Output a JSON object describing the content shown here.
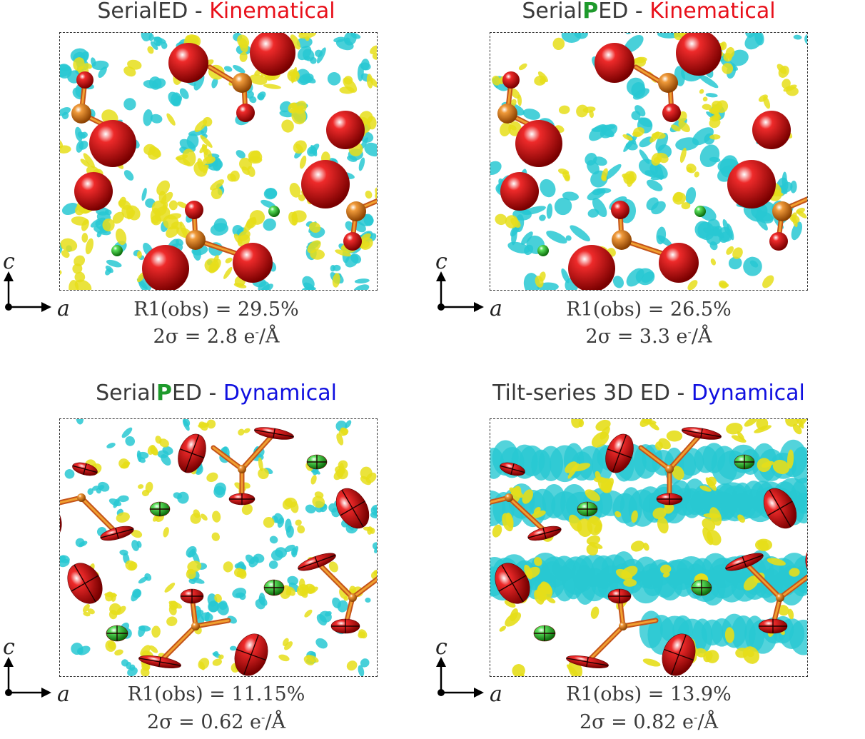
{
  "colors": {
    "kinematical": "#e8101a",
    "dynamical": "#1010e0",
    "precession_p": "#1e9a2c",
    "positive_density": "#e6de1a",
    "negative_density": "#28c8d2",
    "oxygen": "#dd1111",
    "phosphorus": "#e07d1c",
    "cation": "#38b838"
  },
  "axes": {
    "vertical": "c",
    "horizontal": "a"
  },
  "panels": [
    {
      "title_pre": "Serial",
      "title_p": "",
      "title_post": "ED - ",
      "method": "Kinematical",
      "r1": "R1(obs) = 29.5%",
      "sigma_a": "2σ = 2.8 e",
      "sigma_sup": "-",
      "sigma_b": "/Å",
      "style": "kin",
      "density_level": "strong"
    },
    {
      "title_pre": "Serial",
      "title_p": "P",
      "title_post": "ED - ",
      "method": "Kinematical",
      "r1": "R1(obs) = 26.5%",
      "sigma_a": "2σ = 3.3 e",
      "sigma_sup": "-",
      "sigma_b": "/Å",
      "style": "kin",
      "density_level": "strong"
    },
    {
      "title_pre": "Serial",
      "title_p": "P",
      "title_post": "ED - ",
      "method": "Dynamical",
      "r1": "R1(obs) = 11.15%",
      "sigma_a": "2σ = 0.62 e",
      "sigma_sup": "-",
      "sigma_b": "/Å",
      "style": "dyn",
      "density_level": "weak"
    },
    {
      "title_pre": "Tilt-series 3D ED - ",
      "title_p": "",
      "title_post": "",
      "method": "Dynamical",
      "r1": "R1(obs) = 13.9%",
      "sigma_a": "2σ = 0.82 e",
      "sigma_sup": "-",
      "sigma_b": "/Å",
      "style": "dyn",
      "density_level": "banded"
    }
  ]
}
